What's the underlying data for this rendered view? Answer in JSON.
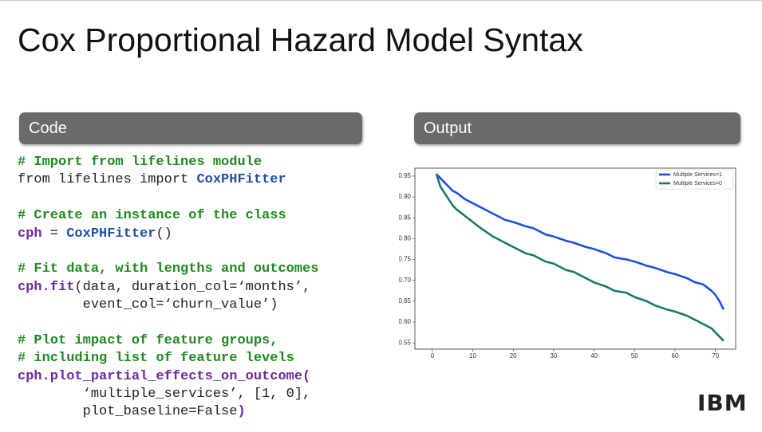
{
  "title": "Cox Proportional Hazard Model Syntax",
  "code_header": "Code",
  "output_header": "Output",
  "logo": "IBM",
  "code": {
    "blocks": [
      [
        [
          {
            "text": "# Import from lifelines module",
            "kind": "comment"
          }
        ],
        [
          {
            "text": "from lifelines import ",
            "kind": "plain"
          },
          {
            "text": "CoxPHFitter",
            "kind": "class"
          }
        ]
      ],
      [
        [
          {
            "text": "# Create an instance of the class",
            "kind": "comment"
          }
        ],
        [
          {
            "text": "cph",
            "kind": "obj"
          },
          {
            "text": " = ",
            "kind": "plain"
          },
          {
            "text": "CoxPHFitter",
            "kind": "class"
          },
          {
            "text": "()",
            "kind": "plain"
          }
        ]
      ],
      [
        [
          {
            "text": "# Fit data, with lengths and outcomes",
            "kind": "comment"
          }
        ],
        [
          {
            "text": "cph.fit",
            "kind": "obj"
          },
          {
            "text": "(data, duration_col=‘months’,",
            "kind": "plain"
          }
        ],
        [
          {
            "text": "        event_col=‘churn_value’)",
            "kind": "plain"
          }
        ]
      ],
      [
        [
          {
            "text": "# Plot impact of feature groups,",
            "kind": "comment"
          }
        ],
        [
          {
            "text": "# including list of feature levels",
            "kind": "comment"
          }
        ],
        [
          {
            "text": "cph.plot_partial_effects_on_outcome(",
            "kind": "obj"
          }
        ],
        [
          {
            "text": "        ‘multiple_services’, [1, 0],",
            "kind": "plain"
          }
        ],
        [
          {
            "text": "        plot_baseline=False",
            "kind": "plain"
          },
          {
            "text": ")",
            "kind": "obj"
          }
        ]
      ]
    ]
  },
  "chart_data": {
    "type": "line",
    "x": [
      1,
      2,
      3,
      4,
      5,
      6,
      8,
      10,
      12,
      15,
      18,
      20,
      23,
      25,
      28,
      30,
      33,
      35,
      38,
      40,
      43,
      45,
      48,
      50,
      53,
      55,
      58,
      60,
      63,
      65,
      67,
      69,
      70,
      71,
      72
    ],
    "series": [
      {
        "name": "Multiple Services=1",
        "color": "#1f4fe0",
        "values": [
          0.955,
          0.945,
          0.935,
          0.925,
          0.915,
          0.91,
          0.895,
          0.885,
          0.875,
          0.86,
          0.845,
          0.84,
          0.83,
          0.825,
          0.81,
          0.805,
          0.795,
          0.79,
          0.78,
          0.775,
          0.765,
          0.755,
          0.75,
          0.745,
          0.735,
          0.73,
          0.72,
          0.715,
          0.705,
          0.695,
          0.69,
          0.675,
          0.665,
          0.65,
          0.63
        ]
      },
      {
        "name": "Multiple Services=0",
        "color": "#1a7a6a",
        "values": [
          0.955,
          0.925,
          0.91,
          0.895,
          0.88,
          0.87,
          0.855,
          0.84,
          0.825,
          0.805,
          0.79,
          0.78,
          0.765,
          0.76,
          0.745,
          0.74,
          0.725,
          0.72,
          0.705,
          0.695,
          0.685,
          0.675,
          0.67,
          0.66,
          0.65,
          0.64,
          0.63,
          0.625,
          0.615,
          0.605,
          0.595,
          0.585,
          0.575,
          0.565,
          0.555
        ]
      }
    ],
    "xlim": [
      -4.3,
      75
    ],
    "xticks": [
      0,
      10,
      20,
      30,
      40,
      50,
      60,
      70
    ],
    "ylim": [
      0.535,
      0.969
    ],
    "yticks": [
      0.55,
      {
        "value": 0.6,
        "label": "0.60"
      },
      0.65,
      {
        "value": 0.7,
        "label": "0.70"
      },
      0.75,
      {
        "value": 0.8,
        "label": "0.80"
      },
      0.85,
      {
        "value": 0.9,
        "label": "0.90"
      },
      0.95
    ],
    "legend": "upper right"
  }
}
